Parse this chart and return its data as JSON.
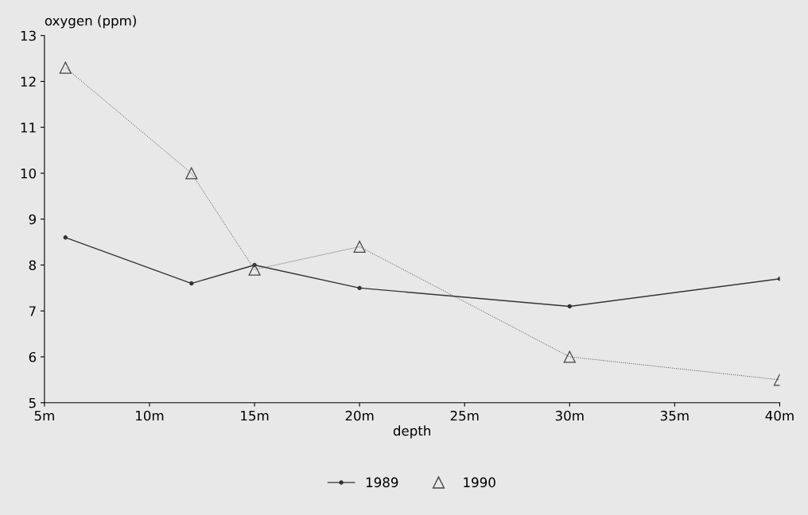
{
  "chart_data": {
    "type": "line",
    "xlabel": "depth",
    "ylabel": "oxygen (ppm)",
    "xlim": [
      5,
      40
    ],
    "xticks": [
      {
        "value": 5,
        "label": "5m"
      },
      {
        "value": 10,
        "label": "10m"
      },
      {
        "value": 15,
        "label": "15m"
      },
      {
        "value": 20,
        "label": "20m"
      },
      {
        "value": 25,
        "label": "25m"
      },
      {
        "value": 30,
        "label": "30m"
      },
      {
        "value": 35,
        "label": "35m"
      },
      {
        "value": 40,
        "label": "40m"
      }
    ],
    "ylim": [
      5,
      13
    ],
    "yticks": [
      5,
      6,
      7,
      8,
      9,
      10,
      11,
      12,
      13
    ],
    "x": [
      6,
      12,
      15,
      20,
      30,
      40
    ],
    "series": [
      {
        "name": "1989",
        "color": "#333333",
        "marker": "circle",
        "line_style": "solid",
        "values": [
          8.6,
          7.6,
          8.0,
          7.5,
          7.1,
          7.7
        ]
      },
      {
        "name": "1990",
        "color": "#444444",
        "marker": "triangle",
        "line_style": "dotted",
        "values": [
          12.3,
          10.0,
          7.9,
          8.4,
          6.0,
          5.5
        ]
      }
    ],
    "grid": false,
    "legend": "bottom"
  }
}
